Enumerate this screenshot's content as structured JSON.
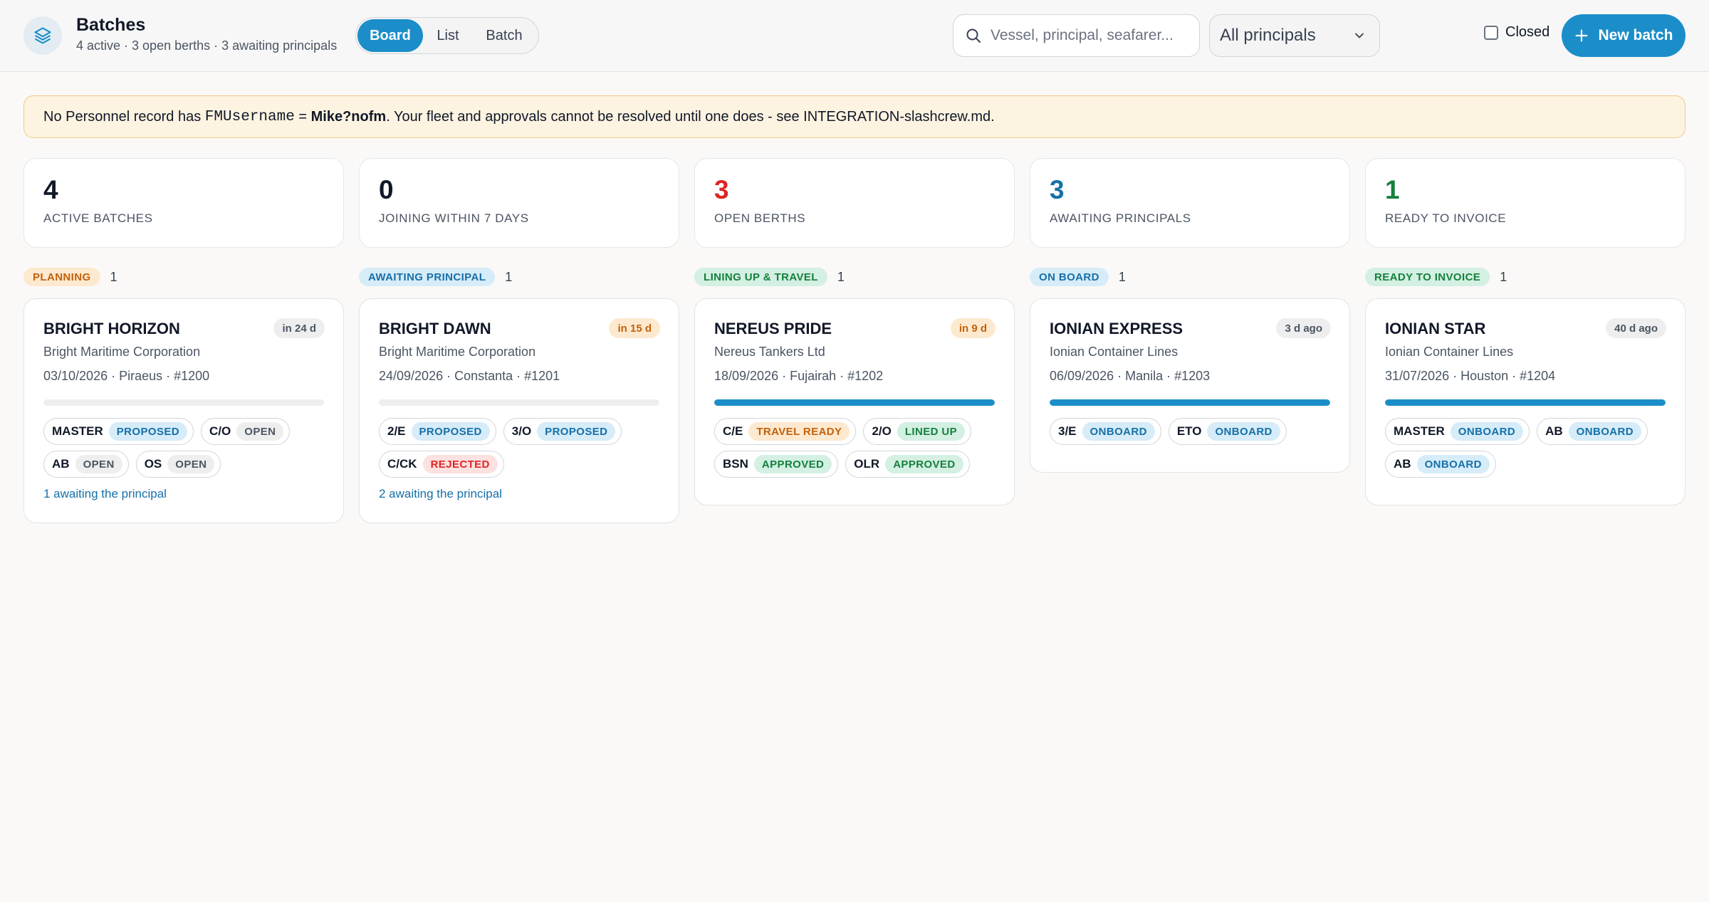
{
  "header": {
    "title": "Batches",
    "subtitle": "4 active · 3 open berths · 3 awaiting principals",
    "views": [
      "Board",
      "List",
      "Batch"
    ],
    "active_view": "Board",
    "search_placeholder": "Vessel, principal, seafarer...",
    "principal_filter": "All principals",
    "closed_label": "Closed",
    "new_batch_label": "New batch"
  },
  "banner": {
    "prefix": "No Personnel record has ",
    "code": "FMUsername",
    "eq": " = ",
    "username": "Mike?nofm",
    "suffix": ". Your fleet and approvals cannot be resolved until one does - see INTEGRATION-slashcrew.md."
  },
  "stats": [
    {
      "value": "4",
      "label": "ACTIVE BATCHES",
      "color": "#111827"
    },
    {
      "value": "0",
      "label": "JOINING WITHIN 7 DAYS",
      "color": "#111827"
    },
    {
      "value": "3",
      "label": "OPEN BERTHS",
      "color": "#dc2626"
    },
    {
      "value": "3",
      "label": "AWAITING PRINCIPALS",
      "color": "#1670a8"
    },
    {
      "value": "1",
      "label": "READY TO INVOICE",
      "color": "#15803d"
    }
  ],
  "columns": [
    {
      "stage": "PLANNING",
      "count": "1",
      "card": {
        "vessel": "BRIGHT HORIZON",
        "when": "in 24 d",
        "principal": "Bright Maritime Corporation",
        "meta": "03/10/2026 · Piraeus · #1200",
        "progress": 0,
        "berths": [
          {
            "rank": "MASTER",
            "status": "PROPOSED"
          },
          {
            "rank": "C/O",
            "status": "OPEN"
          },
          {
            "rank": "AB",
            "status": "OPEN"
          },
          {
            "rank": "OS",
            "status": "OPEN"
          }
        ],
        "awaiting": "1 awaiting the principal"
      }
    },
    {
      "stage": "AWAITING PRINCIPAL",
      "count": "1",
      "card": {
        "vessel": "BRIGHT DAWN",
        "when": "in 15 d",
        "principal": "Bright Maritime Corporation",
        "meta": "24/09/2026 · Constanta · #1201",
        "progress": 0,
        "berths": [
          {
            "rank": "2/E",
            "status": "PROPOSED"
          },
          {
            "rank": "3/O",
            "status": "PROPOSED"
          },
          {
            "rank": "C/CK",
            "status": "REJECTED"
          }
        ],
        "awaiting": "2 awaiting the principal"
      }
    },
    {
      "stage": "LINING UP & TRAVEL",
      "count": "1",
      "card": {
        "vessel": "NEREUS PRIDE",
        "when": "in 9 d",
        "principal": "Nereus Tankers Ltd",
        "meta": "18/09/2026 · Fujairah · #1202",
        "progress": 100,
        "berths": [
          {
            "rank": "C/E",
            "status": "TRAVEL READY"
          },
          {
            "rank": "2/O",
            "status": "LINED UP"
          },
          {
            "rank": "BSN",
            "status": "APPROVED"
          },
          {
            "rank": "OLR",
            "status": "APPROVED"
          }
        ],
        "awaiting": ""
      }
    },
    {
      "stage": "ON BOARD",
      "count": "1",
      "card": {
        "vessel": "IONIAN EXPRESS",
        "when": "3 d ago",
        "principal": "Ionian Container Lines",
        "meta": "06/09/2026 · Manila · #1203",
        "progress": 100,
        "berths": [
          {
            "rank": "3/E",
            "status": "ONBOARD"
          },
          {
            "rank": "ETO",
            "status": "ONBOARD"
          }
        ],
        "awaiting": ""
      }
    },
    {
      "stage": "READY TO INVOICE",
      "count": "1",
      "card": {
        "vessel": "IONIAN STAR",
        "when": "40 d ago",
        "principal": "Ionian Container Lines",
        "meta": "31/07/2026 · Houston · #1204",
        "progress": 100,
        "berths": [
          {
            "rank": "MASTER",
            "status": "ONBOARD"
          },
          {
            "rank": "AB",
            "status": "ONBOARD"
          },
          {
            "rank": "AB",
            "status": "ONBOARD"
          }
        ],
        "awaiting": ""
      }
    }
  ]
}
